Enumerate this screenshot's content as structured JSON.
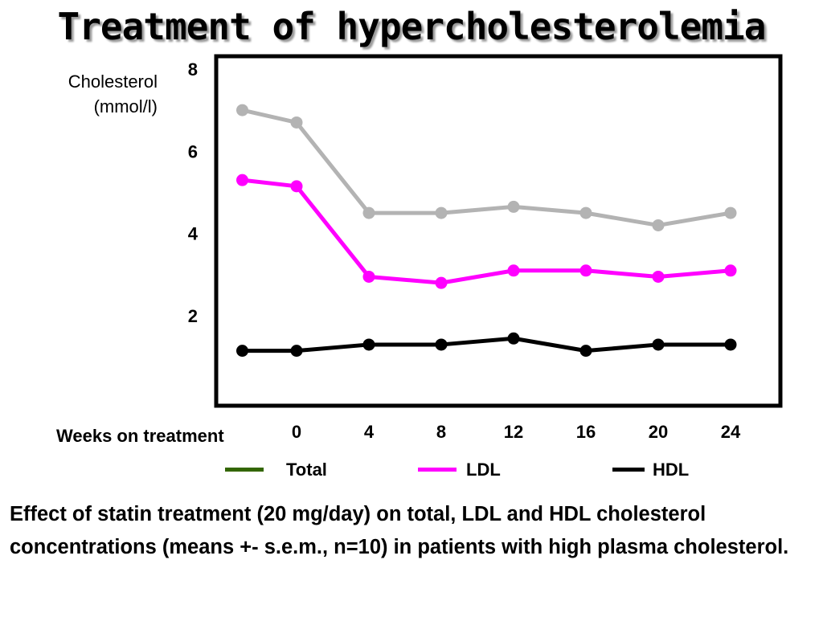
{
  "chart_data": {
    "type": "line",
    "title": "Treatment of hypercholesterolemia",
    "ylabel_lines": [
      "Cholesterol",
      "(mmol/l)"
    ],
    "xlabel": "Weeks on treatment",
    "x": [
      -3,
      0,
      4,
      8,
      12,
      16,
      20,
      24
    ],
    "x_ticks": [
      0,
      4,
      8,
      12,
      16,
      20,
      24
    ],
    "y_ticks": [
      2,
      4,
      6,
      8
    ],
    "ylim": [
      0,
      8.3
    ],
    "grid": false,
    "legend_placement": "bottom",
    "series": [
      {
        "name": "Total",
        "legend_color": "#336600",
        "color": "#b3b3b3",
        "values": [
          7.0,
          6.7,
          4.5,
          4.5,
          4.65,
          4.5,
          4.2,
          4.5
        ]
      },
      {
        "name": "LDL",
        "legend_color": "#ff00ff",
        "color": "#ff00ff",
        "values": [
          5.3,
          5.15,
          2.95,
          2.8,
          3.1,
          3.1,
          2.95,
          3.1
        ]
      },
      {
        "name": "HDL",
        "legend_color": "#000000",
        "color": "#000000",
        "values": [
          1.15,
          1.15,
          1.3,
          1.3,
          1.45,
          1.15,
          1.3,
          1.3
        ]
      }
    ]
  },
  "caption": "Effect of statin treatment (20 mg/day) on total, LDL and HDL cholesterol concentrations (means +- s.e.m., n=10) in patients with high plasma cholesterol."
}
